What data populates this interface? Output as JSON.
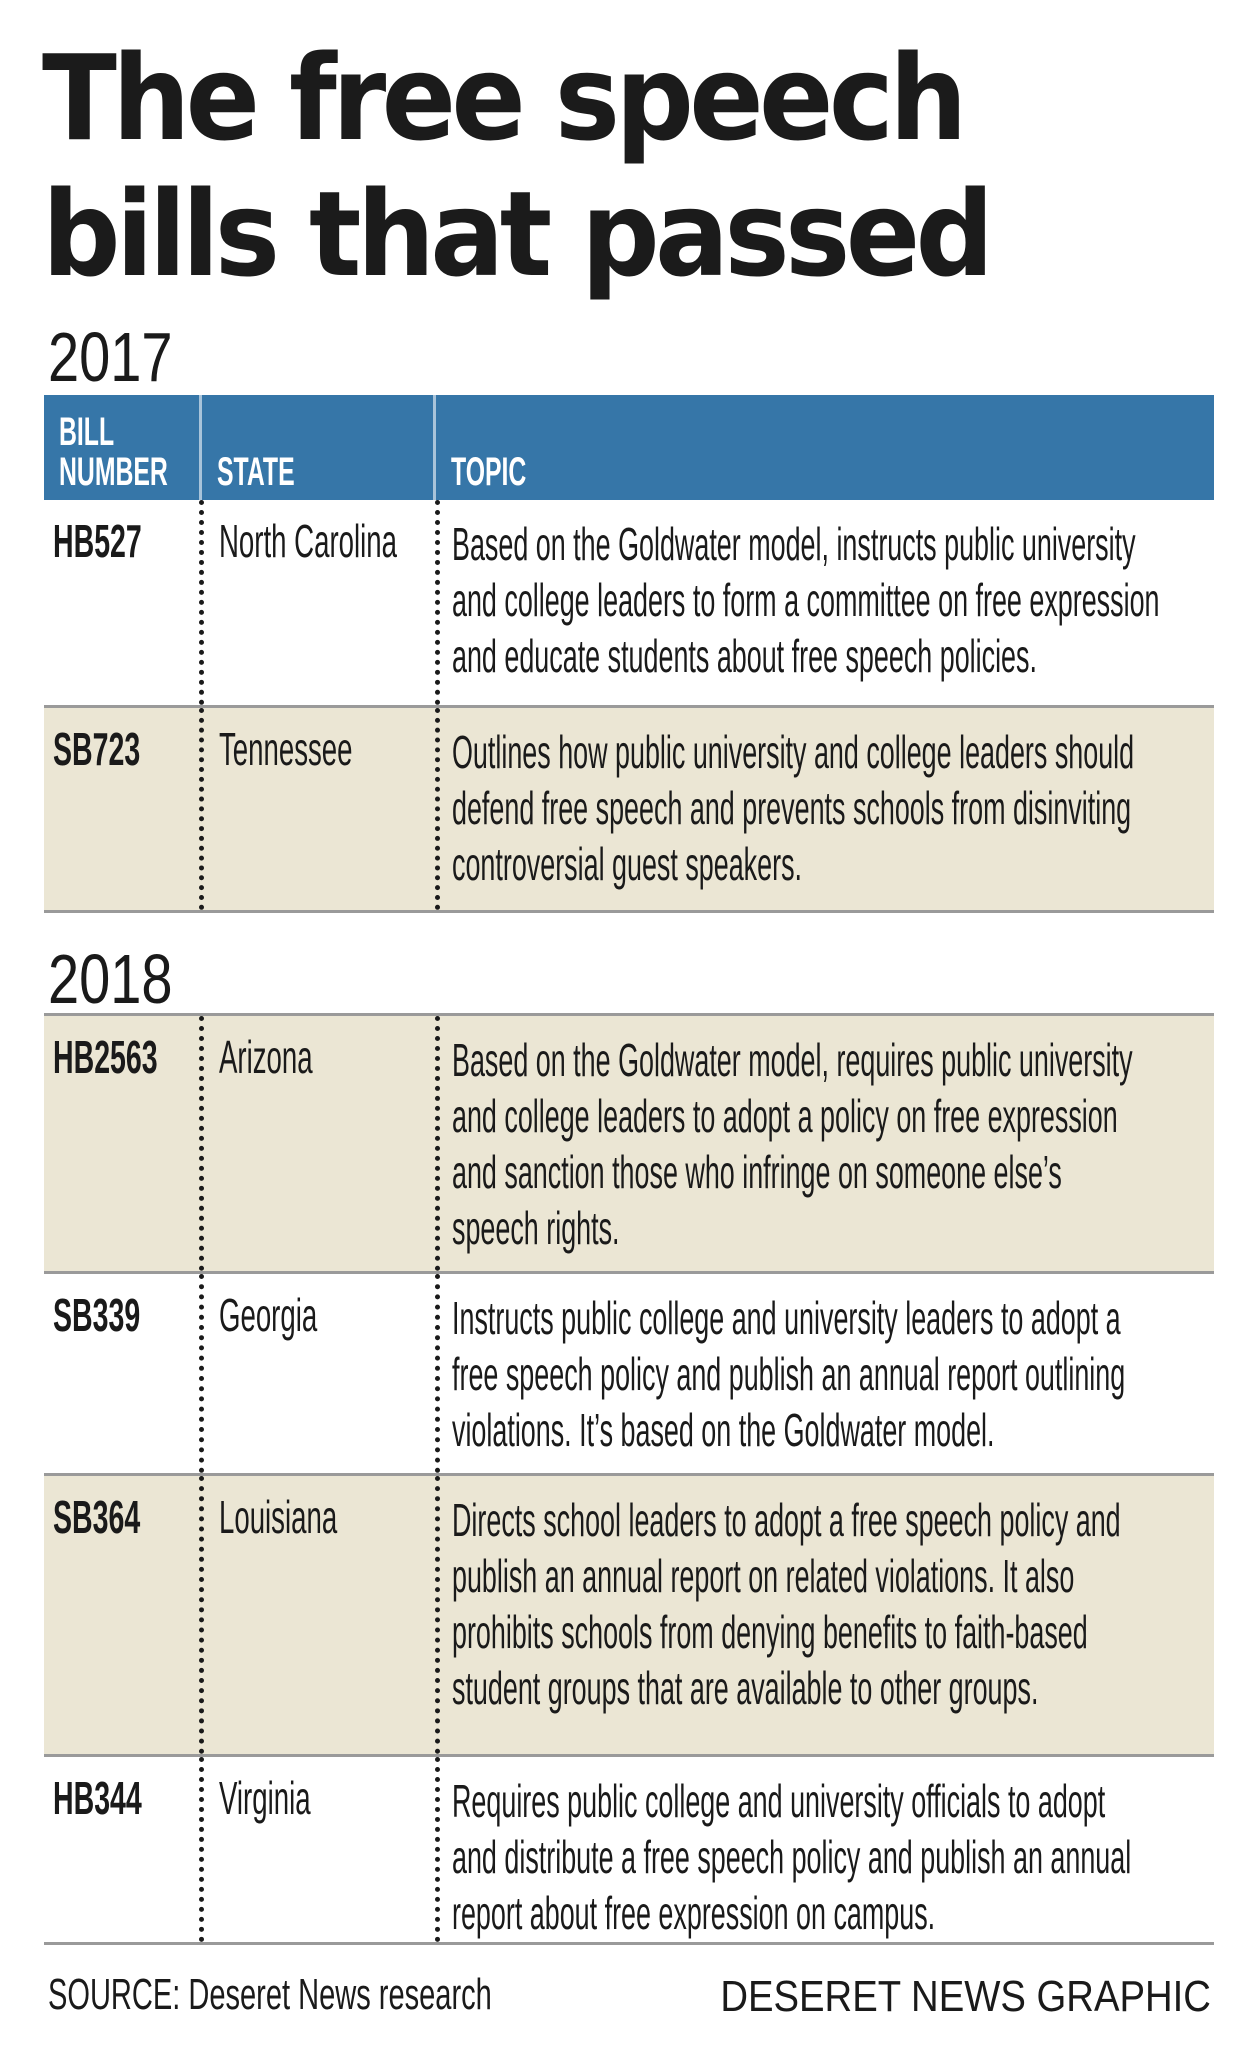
{
  "title": {
    "line1": "The free speech",
    "line2": "bills that passed"
  },
  "header": {
    "bill_line1": "BILL",
    "bill_line2": "NUMBER",
    "state": "STATE",
    "topic": "TOPIC"
  },
  "colors": {
    "header_bg": "#3676a8",
    "shaded_row": "#ebe6d4",
    "rule": "#9a9a9a"
  },
  "sections": [
    {
      "year": "2017",
      "rows": [
        {
          "bill": "HB527",
          "state": "North Carolina",
          "shaded": false,
          "topic_lines": [
            "Based on the Goldwater model, instructs public university",
            "and college leaders to form a committee on free expression",
            "and educate students about free speech policies."
          ]
        },
        {
          "bill": "SB723",
          "state": "Tennessee",
          "shaded": true,
          "topic_lines": [
            "Outlines how public university and college leaders should",
            "defend free speech and prevents schools from disinviting",
            "controversial guest speakers."
          ]
        }
      ]
    },
    {
      "year": "2018",
      "rows": [
        {
          "bill": "HB2563",
          "state": "Arizona",
          "shaded": true,
          "topic_lines": [
            "Based on the Goldwater model, requires public university",
            "and college leaders to adopt a policy on free expression",
            "and sanction those who infringe on someone else’s",
            "speech rights."
          ]
        },
        {
          "bill": "SB339",
          "state": "Georgia",
          "shaded": false,
          "topic_lines": [
            "Instructs public college and university leaders to adopt a",
            "free speech policy and publish an annual report outlining",
            "violations. It’s based on the Goldwater model."
          ]
        },
        {
          "bill": "SB364",
          "state": "Louisiana",
          "shaded": true,
          "topic_lines": [
            "Directs school leaders to adopt a free speech policy and",
            "publish an annual report on related violations. It also",
            "prohibits schools from denying benefits to faith-based",
            "student groups that are available to other groups."
          ]
        },
        {
          "bill": "HB344",
          "state": "Virginia",
          "shaded": false,
          "topic_lines": [
            "Requires public college and university officials to adopt",
            "and distribute a free speech policy and publish an annual",
            "report about free expression on campus."
          ]
        }
      ]
    }
  ],
  "footer": {
    "source": "SOURCE: Deseret News research",
    "credit": "DESERET NEWS GRAPHIC"
  }
}
